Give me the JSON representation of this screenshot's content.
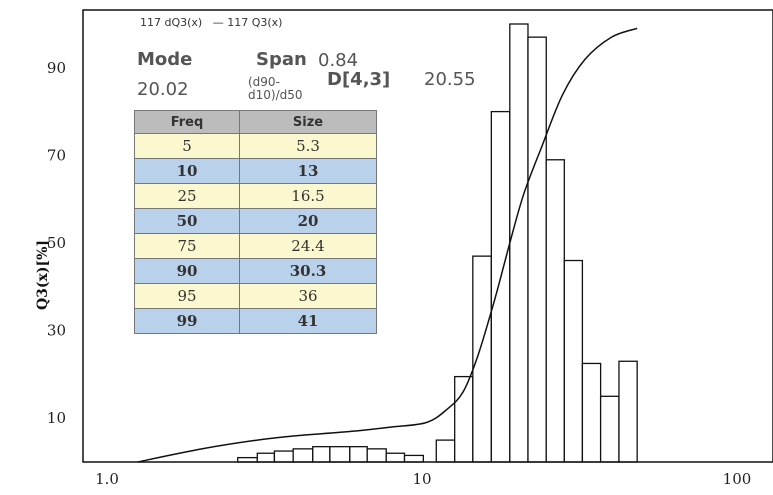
{
  "chart_data": {
    "type": "bar",
    "xscale": "log",
    "xlim": [
      1.0,
      100
    ],
    "ylim": [
      0,
      100
    ],
    "xlabel": "",
    "ylabel": "Q3(x)[%]",
    "x_ticks": [
      {
        "value": 1.0,
        "label": "1.0"
      },
      {
        "value": 10,
        "label": "10"
      },
      {
        "value": 100,
        "label": "100"
      }
    ],
    "y_ticks": [
      10,
      30,
      50,
      70,
      90
    ],
    "legend": [
      "117 dQ3(x)",
      "— 117 Q3(x)"
    ],
    "bars": [
      {
        "x0": 2.6,
        "x1": 3.0,
        "value": 1
      },
      {
        "x0": 3.0,
        "x1": 3.4,
        "value": 2
      },
      {
        "x0": 3.4,
        "x1": 3.9,
        "value": 2.5
      },
      {
        "x0": 3.9,
        "x1": 4.5,
        "value": 3
      },
      {
        "x0": 4.5,
        "x1": 5.1,
        "value": 3.5
      },
      {
        "x0": 5.1,
        "x1": 5.9,
        "value": 3.5
      },
      {
        "x0": 5.9,
        "x1": 6.7,
        "value": 3.5
      },
      {
        "x0": 6.7,
        "x1": 7.7,
        "value": 3
      },
      {
        "x0": 7.7,
        "x1": 8.8,
        "value": 2
      },
      {
        "x0": 8.8,
        "x1": 10.1,
        "value": 1.5
      },
      {
        "x0": 11.1,
        "x1": 12.7,
        "value": 5
      },
      {
        "x0": 12.7,
        "x1": 14.5,
        "value": 19.5
      },
      {
        "x0": 14.5,
        "x1": 16.6,
        "value": 47
      },
      {
        "x0": 16.6,
        "x1": 19.0,
        "value": 80
      },
      {
        "x0": 19.0,
        "x1": 21.7,
        "value": 100
      },
      {
        "x0": 21.7,
        "x1": 24.8,
        "value": 97
      },
      {
        "x0": 24.8,
        "x1": 28.3,
        "value": 69
      },
      {
        "x0": 28.3,
        "x1": 32.3,
        "value": 46
      },
      {
        "x0": 32.3,
        "x1": 36.9,
        "value": 22.5
      },
      {
        "x0": 36.9,
        "x1": 42.2,
        "value": 15
      },
      {
        "x0": 42.2,
        "x1": 48.2,
        "value": 23
      }
    ],
    "cumulative_curve": {
      "x": [
        1.25,
        2,
        3,
        4,
        6,
        8,
        10.3,
        12,
        13.5,
        15,
        17,
        19,
        21,
        24,
        28,
        33,
        40,
        48.2
      ],
      "y": [
        0,
        3,
        5,
        6,
        7,
        8,
        9,
        12,
        16,
        24,
        37,
        50,
        61,
        72,
        84,
        92,
        97,
        99
      ]
    }
  },
  "stats": {
    "mode_label": "Mode",
    "mode_value": "20.02",
    "span_label": "Span",
    "span_value": "0.84",
    "span_formula": "(d90-d10)/d50",
    "d43_label": "D[4,3]",
    "d43_value": "20.55"
  },
  "freq_table": {
    "headers": [
      "Freq",
      "Size"
    ],
    "rows": [
      [
        "5",
        "5.3"
      ],
      [
        "10",
        "13"
      ],
      [
        "25",
        "16.5"
      ],
      [
        "50",
        "20"
      ],
      [
        "75",
        "24.4"
      ],
      [
        "90",
        "30.3"
      ],
      [
        "95",
        "36"
      ],
      [
        "99",
        "41"
      ]
    ]
  }
}
